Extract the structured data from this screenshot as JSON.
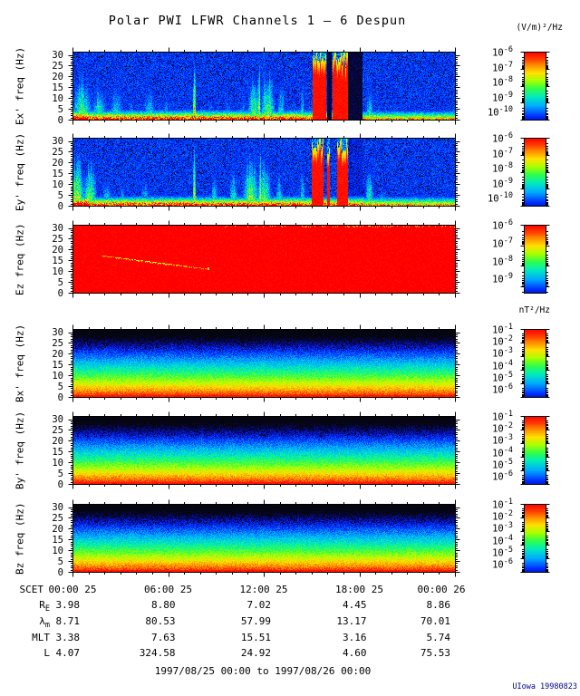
{
  "title": "Polar PWI LFWR Channels 1 — 6 Despun",
  "credit": "UIowa 19980823",
  "time_range_label": "1997/08/25 00:00 to 1997/08/26 00:00",
  "units": {
    "electric": "(V/m)²/Hz",
    "magnetic": "nT²/Hz"
  },
  "colors": {
    "background": "#ffffff",
    "axis": "#000000",
    "credit_blue": "#000088",
    "saturated_red": "#ff0000"
  },
  "scet": {
    "prefix": "SCET",
    "ticks": [
      "00:00 25",
      "06:00 25",
      "12:00 25",
      "18:00 25",
      "00:00 26"
    ]
  },
  "ephemeris": [
    {
      "main": "R",
      "sub": "E",
      "values": [
        "3.98",
        "8.80",
        "7.02",
        "4.45",
        "8.86"
      ]
    },
    {
      "main": "λ",
      "sub": "m",
      "values": [
        "8.71",
        "80.53",
        "57.99",
        "13.17",
        "70.01"
      ]
    },
    {
      "main": "MLT",
      "sub": "",
      "values": [
        "3.38",
        "7.63",
        "15.51",
        "3.16",
        "5.74"
      ]
    },
    {
      "main": "L",
      "sub": "",
      "values": [
        "4.07",
        "324.58",
        "24.92",
        "4.60",
        "75.53"
      ]
    }
  ],
  "chart_data": {
    "type": "heatmap",
    "title": "Polar PWI LFWR Channels 1 — 6 Despun",
    "x_axis": {
      "label": "SCET",
      "start": "1997/08/25 00:00",
      "end": "1997/08/26 00:00",
      "major_tick_hours": [
        0,
        6,
        12,
        18,
        24
      ],
      "minor_tick_hours": 1
    },
    "y_axis": {
      "range_hz": [
        0,
        30
      ],
      "ticks": [
        0,
        5,
        10,
        15,
        20,
        25,
        30
      ],
      "minor_step_hz": 1
    },
    "burst_format": "[t_fraction, width_fraction, max_hz, amplitude]",
    "line_format": "[t_fraction, amplitude] full-band narrow spike",
    "interval_format": "[t_start_fraction, t_end_fraction]",
    "panels": [
      {
        "id": "ex",
        "ylabel": "Ex' freq (Hz)",
        "units": "(V/m)²/Hz",
        "colorbar": {
          "labels": [
            "-6",
            "-7",
            "-8",
            "-9",
            "-10"
          ],
          "decades": 4,
          "top": "1e-6",
          "bottom": "1e-10"
        },
        "summary": "Blue background with broadband electrostatic bursts to ~25 Hz; intense band below ~3 Hz; narrow full-band spikes near 07:40 and 11:45; saturated red intervals ~15:00-17:15 with black data gaps near 16:00 and 17:15-18:10",
        "render": {
          "kind": "electric",
          "seed": 101,
          "band_in_gap": false,
          "bursts": [
            [
              0.025,
              0.025,
              26,
              0.8
            ],
            [
              0.07,
              0.02,
              22,
              0.7
            ],
            [
              0.115,
              0.02,
              24,
              0.6
            ],
            [
              0.155,
              0.012,
              14,
              0.5
            ],
            [
              0.2,
              0.018,
              21,
              0.6
            ],
            [
              0.245,
              0.012,
              19,
              0.5
            ],
            [
              0.3,
              0.006,
              10,
              0.4
            ],
            [
              0.36,
              0.008,
              16,
              0.5
            ],
            [
              0.405,
              0.012,
              18,
              0.45
            ],
            [
              0.445,
              0.008,
              20,
              0.5
            ],
            [
              0.475,
              0.018,
              28,
              0.8
            ],
            [
              0.51,
              0.018,
              30,
              0.85
            ],
            [
              0.545,
              0.012,
              24,
              0.6
            ],
            [
              0.578,
              0.008,
              14,
              0.5
            ],
            [
              0.6,
              0.006,
              26,
              0.6
            ],
            [
              0.775,
              0.01,
              22,
              0.65
            ],
            [
              0.8,
              0.007,
              14,
              0.45
            ],
            [
              0.86,
              0.01,
              12,
              0.35
            ],
            [
              0.9,
              0.015,
              13,
              0.4
            ],
            [
              0.955,
              0.008,
              10,
              0.35
            ]
          ],
          "lines": [
            [
              0.318,
              1.2
            ],
            [
              0.487,
              1.0
            ]
          ],
          "saturated": [
            [
              0.627,
              0.663
            ],
            [
              0.678,
              0.718
            ]
          ],
          "gaps": [
            [
              0.664,
              0.677
            ],
            [
              0.719,
              0.757
            ]
          ]
        }
      },
      {
        "id": "ey",
        "ylabel": "Ey' freq (Hz)",
        "units": "(V/m)²/Hz",
        "colorbar": {
          "labels": [
            "-6",
            "-7",
            "-8",
            "-9",
            "-10"
          ],
          "decades": 4,
          "top": "1e-6",
          "bottom": "1e-10"
        },
        "summary": "Similar to Ex': strong bursts at start of day reaching 30 Hz, narrow full-band spikes near 07:40 and 11:45, saturated red columns ~15:00-17:15",
        "render": {
          "kind": "electric",
          "seed": 202,
          "band_in_gap": true,
          "bursts": [
            [
              0.012,
              0.02,
              30,
              0.95
            ],
            [
              0.045,
              0.02,
              27,
              0.85
            ],
            [
              0.09,
              0.015,
              20,
              0.6
            ],
            [
              0.13,
              0.012,
              16,
              0.5
            ],
            [
              0.19,
              0.015,
              18,
              0.55
            ],
            [
              0.24,
              0.01,
              14,
              0.45
            ],
            [
              0.37,
              0.01,
              22,
              0.6
            ],
            [
              0.42,
              0.012,
              25,
              0.65
            ],
            [
              0.465,
              0.02,
              30,
              0.9
            ],
            [
              0.5,
              0.02,
              28,
              0.8
            ],
            [
              0.54,
              0.012,
              22,
              0.6
            ],
            [
              0.6,
              0.008,
              24,
              0.6
            ],
            [
              0.775,
              0.012,
              24,
              0.7
            ],
            [
              0.81,
              0.008,
              16,
              0.5
            ],
            [
              0.88,
              0.012,
              12,
              0.4
            ],
            [
              0.94,
              0.01,
              11,
              0.35
            ]
          ],
          "lines": [
            [
              0.318,
              1.1
            ],
            [
              0.49,
              1.0
            ]
          ],
          "saturated": [
            [
              0.625,
              0.655
            ],
            [
              0.664,
              0.672
            ],
            [
              0.69,
              0.718
            ]
          ],
          "gaps": [
            [
              0.72,
              0.757
            ]
          ]
        }
      },
      {
        "id": "ez",
        "ylabel": "Ez freq (Hz)",
        "units": "(V/m)²/Hz",
        "colorbar": {
          "labels": [
            "-6",
            "-7",
            "-8",
            "-9"
          ],
          "decades": 3.33,
          "top": "1e-6",
          "bottom": "1e-9"
        },
        "summary": "Channel saturated (solid red); faint yellow tone descending ~17.5 to 11.5 Hz between ~02:00 and ~08:30; yellow speckle band at 30 Hz from ~09:00 to end of day",
        "render": {
          "kind": "saturated",
          "seed": 606,
          "diagonal": {
            "t0": 0.075,
            "f0": 17.5,
            "t1": 0.35,
            "f1": 11.5
          },
          "dots": [
            [
              0.352,
              11.5
            ]
          ],
          "top_band": {
            "t0": 0.38,
            "t1": 1.0,
            "peak_t": 0.66
          }
        }
      },
      {
        "id": "bx",
        "ylabel": "Bx' freq (Hz)",
        "units": "nT²/Hz",
        "colorbar": {
          "labels": [
            "-1",
            "-2",
            "-3",
            "-4",
            "-5",
            "-6"
          ],
          "decades": 5,
          "top": "1e-1",
          "bottom": "1e-6"
        },
        "summary": "Smooth power-law magnetic spectrum, red/intense below ~3 Hz fading to dark blue above ~25 Hz, uniform across the day",
        "render": {
          "kind": "magnetic",
          "seed": 303
        }
      },
      {
        "id": "by",
        "ylabel": "By' freq (Hz)",
        "units": "nT²/Hz",
        "colorbar": {
          "labels": [
            "-1",
            "-2",
            "-3",
            "-4",
            "-5",
            "-6"
          ],
          "decades": 5,
          "top": "1e-1",
          "bottom": "1e-6"
        },
        "summary": "Same smooth power-law spectrum as Bx', uniform across the day",
        "render": {
          "kind": "magnetic",
          "seed": 404
        }
      },
      {
        "id": "bz",
        "ylabel": "Bz freq (Hz)",
        "units": "nT²/Hz",
        "colorbar": {
          "labels": [
            "-1",
            "-2",
            "-3",
            "-4",
            "-5",
            "-6"
          ],
          "decades": 5,
          "top": "1e-1",
          "bottom": "1e-6"
        },
        "summary": "Same smooth power-law spectrum as Bx'/By', uniform across the day",
        "render": {
          "kind": "magnetic",
          "seed": 505
        }
      }
    ]
  }
}
